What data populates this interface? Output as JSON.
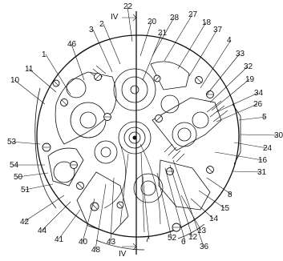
{
  "section_marker": "IV",
  "labels": [
    "22",
    "2",
    "3",
    "20",
    "28",
    "27",
    "18",
    "21",
    "37",
    "46",
    "1",
    "4",
    "33",
    "11",
    "32",
    "19",
    "10",
    "34",
    "26",
    "5",
    "30",
    "53",
    "24",
    "16",
    "54",
    "50",
    "31",
    "51",
    "8",
    "15",
    "42",
    "44",
    "41",
    "40",
    "48",
    "43",
    "7",
    "52",
    "6",
    "36",
    "12",
    "13",
    "14"
  ]
}
